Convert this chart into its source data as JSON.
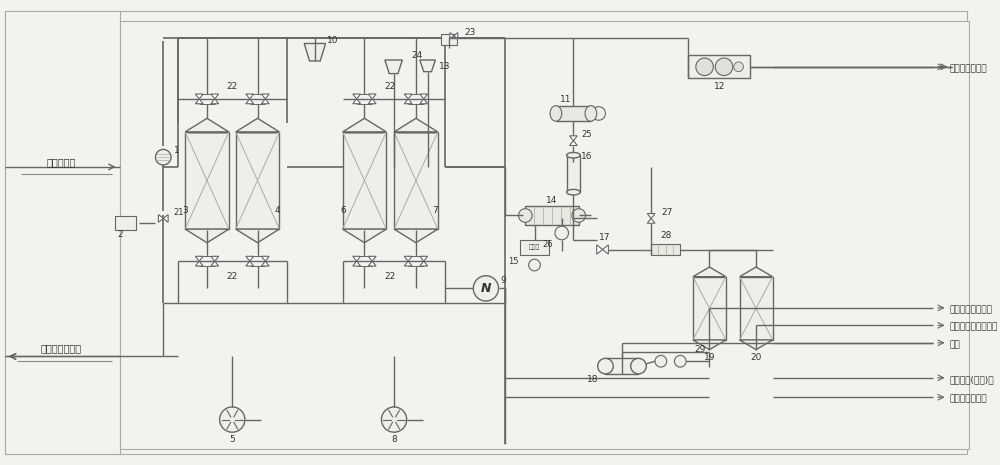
{
  "bg": "#f2f2ee",
  "lc": "#666666",
  "tc": "#333333",
  "labels": {
    "feed_gas": "含汞原料气",
    "sewage_left": "污水至污水系统",
    "sewage_right": "污水至污水系统",
    "flash_gas": "闪蒸气至放空系统",
    "condensate": "凝液至凝液处理装置",
    "nitrogen": "氮气",
    "dehy_dehg_gas": "脱水脱汞(脱烃)气",
    "purified_gas": "脱水脱汞净化气"
  }
}
